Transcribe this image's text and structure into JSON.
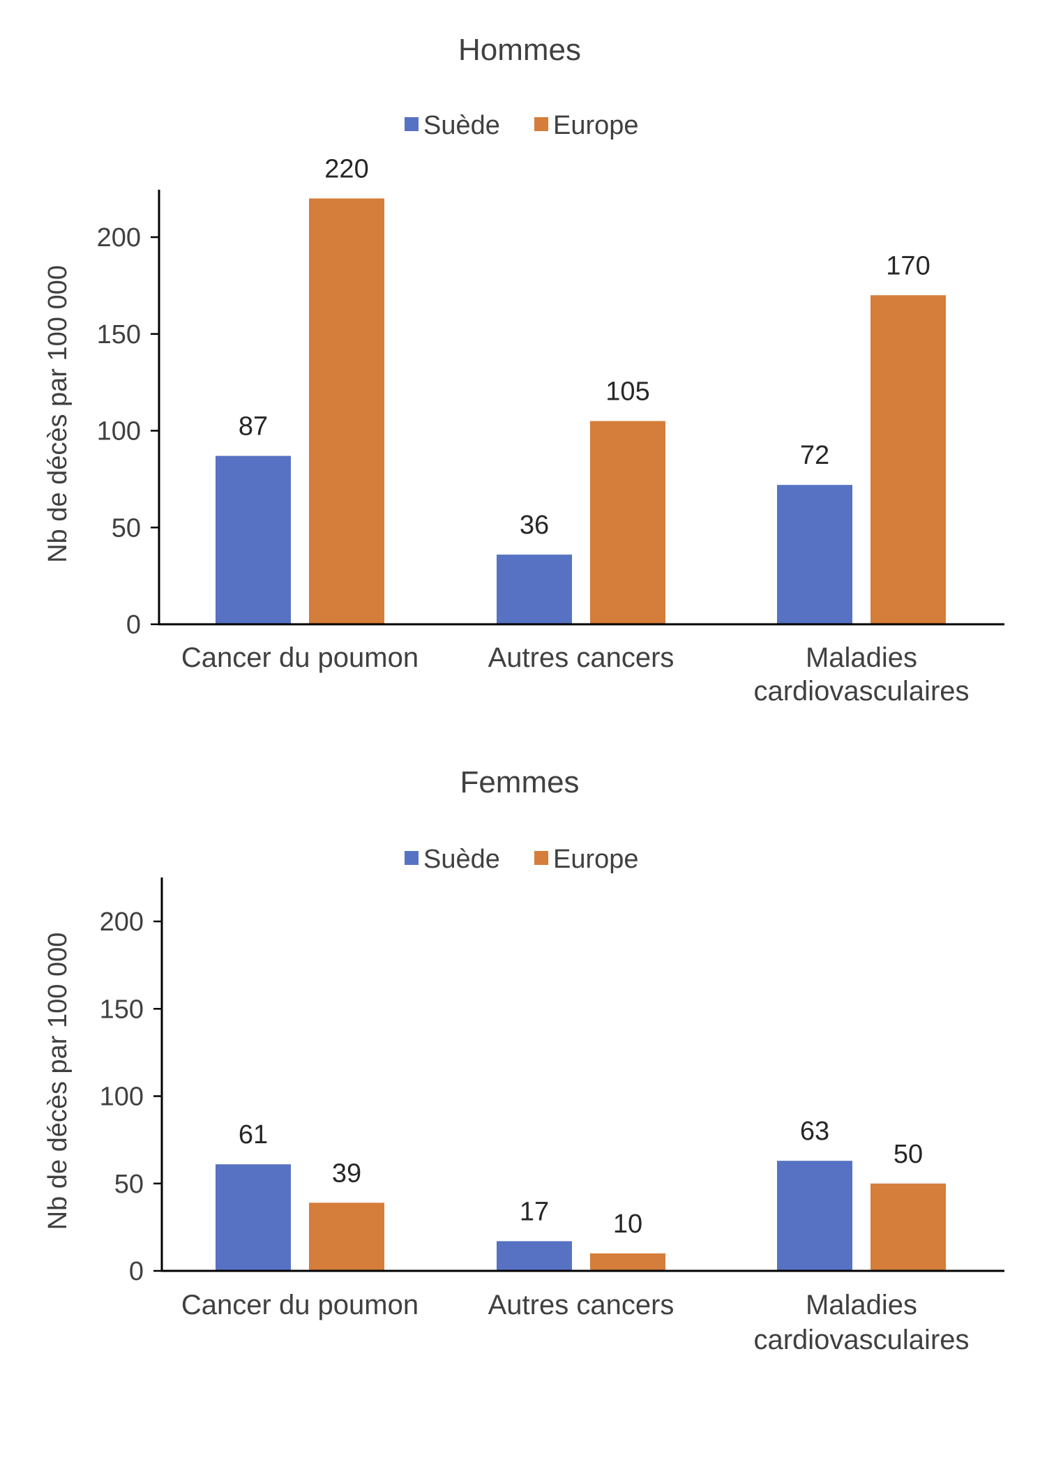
{
  "colors": {
    "suede": "#5772C2",
    "europe": "#D57D3A",
    "axis": "#000000",
    "text": "#404040"
  },
  "chart_data": [
    {
      "type": "bar",
      "title": "Hommes",
      "legend": [
        "Suède",
        "Europe"
      ],
      "legend_position": "top",
      "ylabel": "Nb de décès par 100 000",
      "ylim": [
        0,
        225
      ],
      "yticks": [
        0,
        50,
        100,
        150,
        200
      ],
      "grid": false,
      "categories": [
        [
          "Cancer du poumon"
        ],
        [
          "Autres cancers"
        ],
        [
          "Maladies",
          "cardiovasculaires"
        ]
      ],
      "series": [
        {
          "name": "Suède",
          "values": [
            87,
            36,
            72
          ]
        },
        {
          "name": "Europe",
          "values": [
            220,
            105,
            170
          ]
        }
      ]
    },
    {
      "type": "bar",
      "title": "Femmes",
      "legend": [
        "Suède",
        "Europe"
      ],
      "legend_position": "top",
      "ylabel": "Nb de décès par 100 000",
      "ylim": [
        0,
        225
      ],
      "yticks": [
        0,
        50,
        100,
        150,
        200
      ],
      "grid": false,
      "categories": [
        [
          "Cancer du poumon"
        ],
        [
          "Autres cancers"
        ],
        [
          "Maladies",
          "cardiovasculaires"
        ]
      ],
      "series": [
        {
          "name": "Suède",
          "values": [
            61,
            17,
            63
          ]
        },
        {
          "name": "Europe",
          "values": [
            39,
            10,
            50
          ]
        }
      ]
    }
  ]
}
